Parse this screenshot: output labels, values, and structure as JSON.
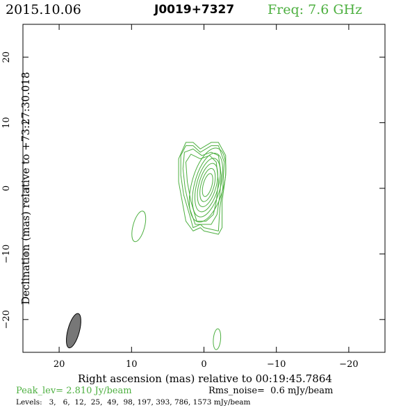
{
  "header": {
    "date": "2015.10.06",
    "source": "J0019+7327",
    "freq": "Freq: 7.6 GHz"
  },
  "footer": {
    "peak": "Peak_lev=  2.810 Jy/beam",
    "rms": "Rms_noise=  0.6 mJy/beam",
    "levels": "Levels:   3,   6,  12,  25,  49,  98, 197, 393, 786, 1573 mJy/beam"
  },
  "colors": {
    "contour": "#4caf3f",
    "freq_text": "#4caf3f",
    "peak_text": "#4caf3f",
    "axis": "#000000",
    "beam_fill": "#777777"
  },
  "chart_data": {
    "type": "contour",
    "title": "J0019+7327",
    "xlabel": "Right ascension (mas) relative to 00:19:45.7864",
    "ylabel": "Declination (mas) relative to +73:27:30.018",
    "xlim": [
      25,
      -25
    ],
    "ylim": [
      -25,
      25
    ],
    "x_ticks": [
      20,
      10,
      0,
      -10,
      -20
    ],
    "y_ticks": [
      -20,
      -10,
      0,
      10,
      20
    ],
    "x_tick_labels": [
      "20",
      "10",
      "0",
      "−10",
      "−20"
    ],
    "y_tick_labels": [
      "−20",
      "−10",
      "0",
      "10",
      "20"
    ],
    "contour_levels_mjy": [
      3,
      6,
      12,
      25,
      49,
      98,
      197,
      393,
      786,
      1573
    ],
    "peak_jy_per_beam": 2.81,
    "rms_noise_mjy_per_beam": 0.6,
    "core": {
      "x": -0.5,
      "y": 0.5,
      "angle_deg": 15
    },
    "outer_contours": [
      {
        "path": [
          [
            1.5,
            -6.5
          ],
          [
            2.5,
            -5
          ],
          [
            3,
            -2
          ],
          [
            3.5,
            1
          ],
          [
            3.5,
            4.5
          ],
          [
            2.5,
            7
          ],
          [
            1.5,
            7
          ],
          [
            0.5,
            6
          ],
          [
            -1,
            7
          ],
          [
            -2,
            7
          ],
          [
            -3,
            5
          ],
          [
            -3,
            2
          ],
          [
            -2.5,
            -2
          ],
          [
            -2.5,
            -6
          ],
          [
            -2,
            -7
          ],
          [
            0,
            -6.5
          ],
          [
            0.5,
            -6
          ]
        ]
      },
      {
        "path": [
          [
            1.5,
            -6
          ],
          [
            2,
            -4
          ],
          [
            2.8,
            -1
          ],
          [
            3.2,
            2
          ],
          [
            3.2,
            5
          ],
          [
            2.5,
            6.5
          ],
          [
            1.5,
            6.5
          ],
          [
            0.5,
            5.5
          ],
          [
            -1,
            6.5
          ],
          [
            -2,
            6.5
          ],
          [
            -2.8,
            4
          ],
          [
            -2.6,
            0
          ],
          [
            -2.2,
            -3
          ],
          [
            -2,
            -6.5
          ],
          [
            0,
            -6
          ],
          [
            0.5,
            -5.5
          ]
        ]
      },
      {
        "path": [
          [
            1.2,
            -5.5
          ],
          [
            2,
            -3
          ],
          [
            2.6,
            0
          ],
          [
            2.9,
            3
          ],
          [
            2.7,
            5.5
          ],
          [
            1.5,
            6
          ],
          [
            0.3,
            5
          ],
          [
            -1,
            5.5
          ],
          [
            -2,
            5
          ],
          [
            -2.4,
            2
          ],
          [
            -2.2,
            -1
          ],
          [
            -1.8,
            -4
          ],
          [
            -1,
            -5.5
          ],
          [
            0,
            -5.5
          ]
        ]
      },
      {
        "path": [
          [
            1,
            -5
          ],
          [
            1.8,
            -2
          ],
          [
            2.3,
            1
          ],
          [
            2.5,
            4
          ],
          [
            1.8,
            5.2
          ],
          [
            0.5,
            4.5
          ],
          [
            -0.8,
            5
          ],
          [
            -1.7,
            4
          ],
          [
            -2,
            1
          ],
          [
            -1.7,
            -2
          ],
          [
            -1.3,
            -4
          ],
          [
            -0.3,
            -5
          ]
        ]
      }
    ],
    "core_contours": [
      {
        "rx": 2.2,
        "ry": 5.8
      },
      {
        "rx": 1.8,
        "ry": 5.0
      },
      {
        "rx": 1.5,
        "ry": 4.2
      },
      {
        "rx": 1.2,
        "ry": 3.4
      },
      {
        "rx": 0.9,
        "ry": 2.6
      },
      {
        "rx": 0.6,
        "ry": 1.8
      }
    ],
    "isolated_components": [
      {
        "x": 9,
        "y": -5.8,
        "rx": 0.8,
        "ry": 2.4,
        "angle_deg": 15
      },
      {
        "x": -1.8,
        "y": -23,
        "rx": 0.5,
        "ry": 1.6,
        "angle_deg": 5
      }
    ],
    "beam": {
      "x": 18,
      "y": -21.7,
      "rx": 0.8,
      "ry": 2.7,
      "angle_deg": 15
    }
  }
}
